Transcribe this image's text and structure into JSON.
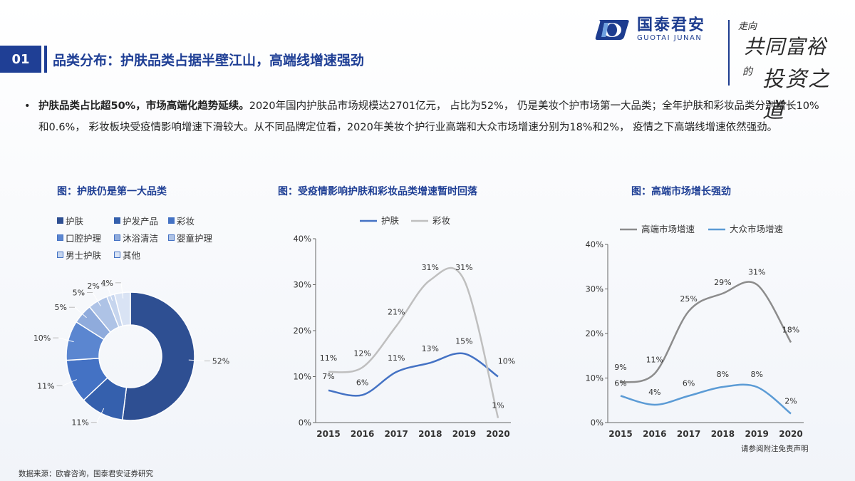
{
  "header": {
    "logo_cn": "国泰君安",
    "logo_en": "GUOTAI JUNAN",
    "slogan": [
      "走向",
      "共同富裕",
      "的",
      "投资之道"
    ]
  },
  "section": {
    "number": "01",
    "title": "品类分布：护肤品类占据半壁江山，高端线增速强劲"
  },
  "bullet": {
    "bold": "护肤品类占比超50%，市场高端化趋势延续。",
    "text": "2020年国内护肤品市场规模达2701亿元， 占比为52%， 仍是美妆个护市场第一大品类；全年护肤和彩妆品类分别增长10%和0.6%， 彩妆板块受疫情影响增速下滑较大。从不同品牌定位看，2020年美妆个护行业高端和大众市场增速分别为18%和2%， 疫情之下高端线增速依然强劲。"
  },
  "footer": {
    "source": "数据来源：欧睿咨询，国泰君安证券研究",
    "note": "请参阅附注免责声明"
  },
  "colors": {
    "brand": "#1f3f95",
    "line_blue": "#4472c4",
    "line_gray": "#bfbfbf",
    "hi_gray": "#8c8c8c",
    "mass_blue": "#5b9bd5"
  },
  "chart_data": [
    {
      "type": "pie",
      "title": "图：护肤仍是第一大品类",
      "categories": [
        "护肤",
        "护发产品",
        "彩妆",
        "口腔护理",
        "沐浴清洁",
        "婴童护理",
        "男士护肤",
        "其他"
      ],
      "values": [
        52,
        11,
        11,
        10,
        5,
        5,
        2,
        4
      ],
      "labels": [
        "52%",
        "11%",
        "11%",
        "10%",
        "5%",
        "5%",
        "2%",
        "4%"
      ],
      "colors": [
        "#2e4f92",
        "#3560ad",
        "#4472c4",
        "#5b86d0",
        "#8fabdc",
        "#aec3e6",
        "#c6d5ee",
        "#d9e3f4"
      ],
      "donut": true,
      "legend": "top"
    },
    {
      "type": "line",
      "title": "图：受疫情影响护肤和彩妆品类增速暂时回落",
      "x": [
        "2015",
        "2016",
        "2017",
        "2018",
        "2019",
        "2020"
      ],
      "series": [
        {
          "name": "护肤",
          "values": [
            7,
            6,
            11,
            13,
            15,
            10
          ],
          "labels": [
            "7%",
            "6%",
            "11%",
            "13%",
            "15%",
            "10%"
          ],
          "color": "#4472c4"
        },
        {
          "name": "彩妆",
          "values": [
            11,
            12,
            21,
            31,
            31,
            1
          ],
          "labels": [
            "11%",
            "12%",
            "21%",
            "31%",
            "31%",
            "1%"
          ],
          "color": "#bfbfbf"
        }
      ],
      "ylim": [
        0,
        40
      ],
      "yticks": [
        "0%",
        "10%",
        "20%",
        "30%",
        "40%"
      ],
      "legend": "top"
    },
    {
      "type": "line",
      "title": "图：高端市场增长强劲",
      "x": [
        "2015",
        "2016",
        "2017",
        "2018",
        "2019",
        "2020"
      ],
      "series": [
        {
          "name": "高端市场增速",
          "values": [
            9,
            11,
            25,
            29,
            31,
            18
          ],
          "labels": [
            "9%",
            "11%",
            "25%",
            "29%",
            "31%",
            "18%"
          ],
          "color": "#8c8c8c"
        },
        {
          "name": "大众市场增速",
          "values": [
            6,
            4,
            6,
            8,
            8,
            2
          ],
          "labels": [
            "6%",
            "4%",
            "6%",
            "8%",
            "8%",
            "2%"
          ],
          "color": "#5b9bd5"
        }
      ],
      "ylim": [
        0,
        40
      ],
      "yticks": [
        "0%",
        "10%",
        "20%",
        "30%",
        "40%"
      ],
      "legend": "top"
    }
  ]
}
